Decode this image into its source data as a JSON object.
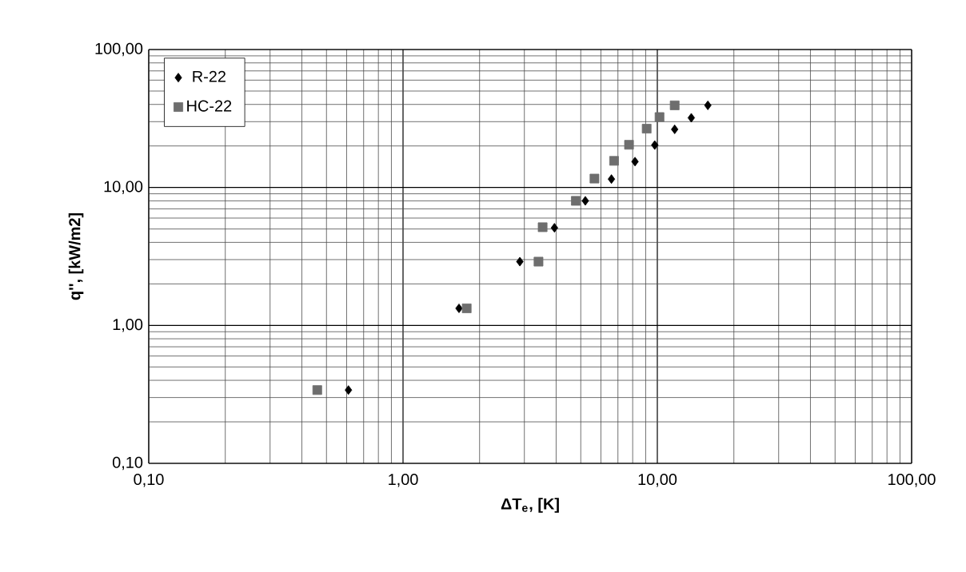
{
  "chart_data": {
    "type": "scatter",
    "xlabel": "ΔT$_{e}$, [K]",
    "ylabel": "q'', [kW/m2]",
    "log": "xy",
    "grid": true,
    "legend": "top left",
    "xlim": [
      0.1,
      100
    ],
    "ylim": [
      0.1,
      100
    ],
    "xticks": [
      {
        "value": 0.1,
        "label": "0,10"
      },
      {
        "value": 1,
        "label": "1,00"
      },
      {
        "value": 10,
        "label": "10,00"
      },
      {
        "value": 100,
        "label": "100,00"
      }
    ],
    "yticks": [
      {
        "value": 0.1,
        "label": "0,10"
      },
      {
        "value": 1,
        "label": "1,00"
      },
      {
        "value": 10,
        "label": "10,00"
      },
      {
        "value": 100,
        "label": "100,00"
      }
    ],
    "series": [
      {
        "name": "R-22",
        "color": "#000000",
        "marker": "diamond",
        "x": [
          0.61,
          1.66,
          2.88,
          3.94,
          5.21,
          6.6,
          8.17,
          9.77,
          11.7,
          13.6,
          15.8
        ],
        "values": [
          0.34,
          1.33,
          2.9,
          5.1,
          8.0,
          11.5,
          15.4,
          20.3,
          26.4,
          32,
          39.4
        ]
      },
      {
        "name": "HC-22",
        "color": "#6e6e6e",
        "marker": "square",
        "x": [
          0.46,
          1.78,
          3.41,
          3.54,
          4.78,
          5.66,
          6.76,
          7.74,
          9.08,
          10.2,
          11.7
        ],
        "values": [
          0.34,
          1.33,
          2.9,
          5.15,
          8.0,
          11.6,
          15.6,
          20.4,
          26.7,
          32.4,
          39.4
        ]
      }
    ]
  }
}
